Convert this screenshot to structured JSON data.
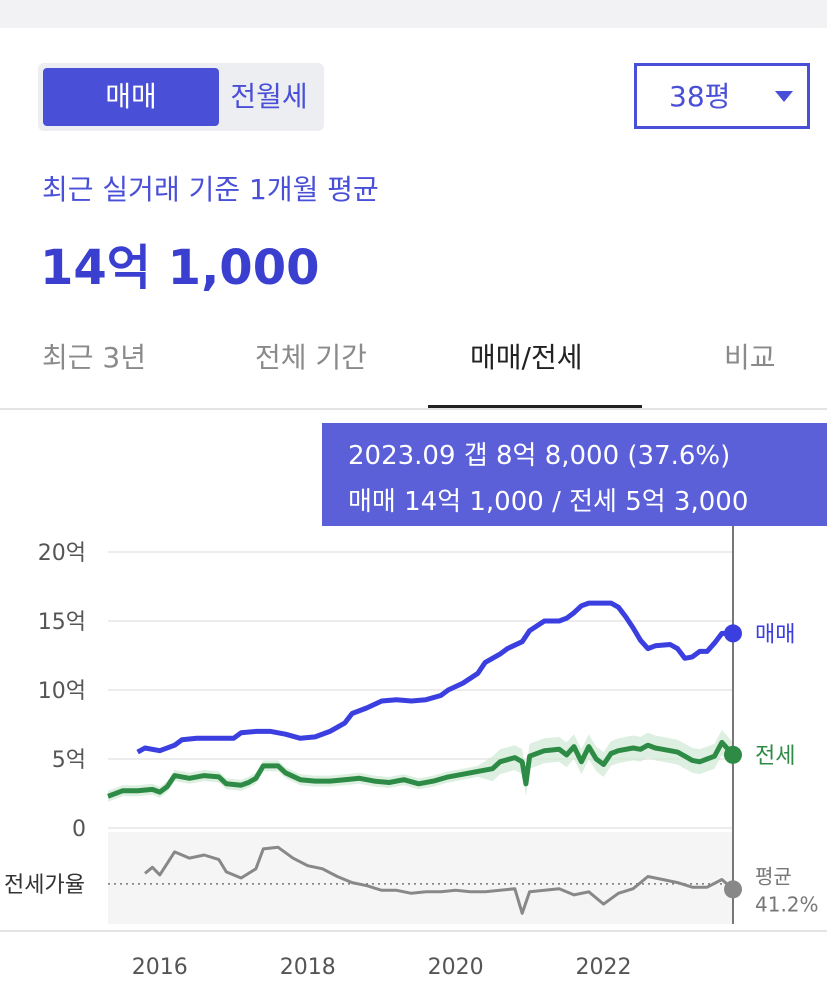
{
  "controls": {
    "segment": {
      "active": "매매",
      "other": "전월세"
    },
    "size_select": {
      "value": "38평"
    }
  },
  "summary": {
    "subtitle": "최근 실거래 기준 1개월 평균",
    "price": "14억 1,000"
  },
  "tabs": [
    {
      "label": "최근 3년",
      "active": false
    },
    {
      "label": "전체 기간",
      "active": false
    },
    {
      "label": "매매/전세",
      "active": true
    },
    {
      "label": "비교",
      "active": false
    }
  ],
  "tooltip": {
    "line1": "2023.09  갭 8억 8,000 (37.6%)",
    "line2": "매매 14억 1,000 / 전세 5억 3,000"
  },
  "colors": {
    "accent": "#4a4fd8",
    "sale": "#3b3fe0",
    "jeonse": "#2e8b45",
    "jeonse_band": "#cfe8d3",
    "ratio": "#888888"
  },
  "chart_data": {
    "type": "line",
    "yaxis": {
      "unit": "억",
      "ylim": [
        0,
        20
      ],
      "ticks": [
        {
          "value": 20,
          "label": "20억"
        },
        {
          "value": 15,
          "label": "15억"
        },
        {
          "value": 10,
          "label": "10억"
        },
        {
          "value": 5,
          "label": "5억"
        },
        {
          "value": 0,
          "label": "0"
        }
      ]
    },
    "xaxis": {
      "xlim": [
        2015.3,
        2023.75
      ],
      "ticks": [
        {
          "value": 2016,
          "label": "2016"
        },
        {
          "value": 2018,
          "label": "2018"
        },
        {
          "value": 2020,
          "label": "2020"
        },
        {
          "value": 2022,
          "label": "2022"
        }
      ]
    },
    "grid": true,
    "series": [
      {
        "name": "매매",
        "points": [
          [
            2015.7,
            5.5
          ],
          [
            2015.8,
            5.8
          ],
          [
            2016.0,
            5.6
          ],
          [
            2016.2,
            6.0
          ],
          [
            2016.3,
            6.4
          ],
          [
            2016.5,
            6.5
          ],
          [
            2016.8,
            6.5
          ],
          [
            2017.0,
            6.5
          ],
          [
            2017.1,
            6.9
          ],
          [
            2017.3,
            7.0
          ],
          [
            2017.5,
            7.0
          ],
          [
            2017.7,
            6.8
          ],
          [
            2017.9,
            6.5
          ],
          [
            2018.1,
            6.6
          ],
          [
            2018.3,
            7.0
          ],
          [
            2018.5,
            7.6
          ],
          [
            2018.6,
            8.3
          ],
          [
            2018.8,
            8.7
          ],
          [
            2019.0,
            9.2
          ],
          [
            2019.2,
            9.3
          ],
          [
            2019.4,
            9.2
          ],
          [
            2019.6,
            9.3
          ],
          [
            2019.8,
            9.6
          ],
          [
            2019.9,
            10.0
          ],
          [
            2020.1,
            10.5
          ],
          [
            2020.3,
            11.2
          ],
          [
            2020.4,
            12.0
          ],
          [
            2020.6,
            12.6
          ],
          [
            2020.7,
            13.0
          ],
          [
            2020.9,
            13.5
          ],
          [
            2021.0,
            14.3
          ],
          [
            2021.2,
            15.0
          ],
          [
            2021.4,
            15.0
          ],
          [
            2021.5,
            15.2
          ],
          [
            2021.6,
            15.6
          ],
          [
            2021.7,
            16.1
          ],
          [
            2021.8,
            16.3
          ],
          [
            2022.0,
            16.3
          ],
          [
            2022.1,
            16.3
          ],
          [
            2022.2,
            16.0
          ],
          [
            2022.3,
            15.3
          ],
          [
            2022.4,
            14.5
          ],
          [
            2022.5,
            13.6
          ],
          [
            2022.6,
            13.0
          ],
          [
            2022.7,
            13.2
          ],
          [
            2022.9,
            13.3
          ],
          [
            2023.0,
            13.0
          ],
          [
            2023.1,
            12.3
          ],
          [
            2023.2,
            12.4
          ],
          [
            2023.3,
            12.8
          ],
          [
            2023.4,
            12.8
          ],
          [
            2023.5,
            13.4
          ],
          [
            2023.6,
            14.1
          ],
          [
            2023.75,
            14.1
          ]
        ]
      },
      {
        "name": "전세",
        "points": [
          [
            2015.3,
            2.3
          ],
          [
            2015.5,
            2.7
          ],
          [
            2015.7,
            2.7
          ],
          [
            2015.9,
            2.8
          ],
          [
            2016.0,
            2.6
          ],
          [
            2016.1,
            3.0
          ],
          [
            2016.2,
            3.8
          ],
          [
            2016.4,
            3.6
          ],
          [
            2016.6,
            3.8
          ],
          [
            2016.8,
            3.7
          ],
          [
            2016.9,
            3.2
          ],
          [
            2017.1,
            3.1
          ],
          [
            2017.2,
            3.3
          ],
          [
            2017.3,
            3.6
          ],
          [
            2017.4,
            4.5
          ],
          [
            2017.6,
            4.5
          ],
          [
            2017.7,
            4.0
          ],
          [
            2017.9,
            3.5
          ],
          [
            2018.1,
            3.4
          ],
          [
            2018.3,
            3.4
          ],
          [
            2018.5,
            3.5
          ],
          [
            2018.7,
            3.6
          ],
          [
            2018.9,
            3.4
          ],
          [
            2019.1,
            3.3
          ],
          [
            2019.3,
            3.5
          ],
          [
            2019.5,
            3.2
          ],
          [
            2019.7,
            3.4
          ],
          [
            2019.9,
            3.7
          ],
          [
            2020.1,
            3.9
          ],
          [
            2020.3,
            4.1
          ],
          [
            2020.5,
            4.3
          ],
          [
            2020.6,
            4.8
          ],
          [
            2020.8,
            5.1
          ],
          [
            2020.9,
            4.8
          ],
          [
            2020.95,
            3.2
          ],
          [
            2021.0,
            5.2
          ],
          [
            2021.2,
            5.6
          ],
          [
            2021.4,
            5.7
          ],
          [
            2021.5,
            5.3
          ],
          [
            2021.6,
            5.9
          ],
          [
            2021.7,
            4.8
          ],
          [
            2021.8,
            5.9
          ],
          [
            2021.9,
            5.0
          ],
          [
            2022.0,
            4.6
          ],
          [
            2022.1,
            5.4
          ],
          [
            2022.2,
            5.6
          ],
          [
            2022.4,
            5.8
          ],
          [
            2022.5,
            5.7
          ],
          [
            2022.6,
            6.0
          ],
          [
            2022.7,
            5.8
          ],
          [
            2022.8,
            5.7
          ],
          [
            2023.0,
            5.5
          ],
          [
            2023.1,
            5.2
          ],
          [
            2023.2,
            4.9
          ],
          [
            2023.3,
            4.8
          ],
          [
            2023.4,
            5.0
          ],
          [
            2023.5,
            5.2
          ],
          [
            2023.6,
            6.2
          ],
          [
            2023.75,
            5.3
          ]
        ]
      },
      {
        "name": "전세가율",
        "points": [
          [
            2015.8,
            0.48
          ],
          [
            2015.9,
            0.52
          ],
          [
            2016.0,
            0.47
          ],
          [
            2016.2,
            0.62
          ],
          [
            2016.4,
            0.58
          ],
          [
            2016.6,
            0.6
          ],
          [
            2016.8,
            0.57
          ],
          [
            2016.9,
            0.49
          ],
          [
            2017.1,
            0.45
          ],
          [
            2017.3,
            0.51
          ],
          [
            2017.4,
            0.64
          ],
          [
            2017.6,
            0.65
          ],
          [
            2017.8,
            0.58
          ],
          [
            2018.0,
            0.53
          ],
          [
            2018.2,
            0.51
          ],
          [
            2018.4,
            0.46
          ],
          [
            2018.6,
            0.42
          ],
          [
            2018.8,
            0.4
          ],
          [
            2019.0,
            0.37
          ],
          [
            2019.2,
            0.37
          ],
          [
            2019.4,
            0.35
          ],
          [
            2019.6,
            0.36
          ],
          [
            2019.8,
            0.36
          ],
          [
            2020.0,
            0.37
          ],
          [
            2020.2,
            0.36
          ],
          [
            2020.4,
            0.36
          ],
          [
            2020.6,
            0.37
          ],
          [
            2020.8,
            0.38
          ],
          [
            2020.9,
            0.22
          ],
          [
            2021.0,
            0.36
          ],
          [
            2021.2,
            0.37
          ],
          [
            2021.4,
            0.38
          ],
          [
            2021.6,
            0.34
          ],
          [
            2021.8,
            0.36
          ],
          [
            2022.0,
            0.28
          ],
          [
            2022.2,
            0.35
          ],
          [
            2022.4,
            0.38
          ],
          [
            2022.6,
            0.46
          ],
          [
            2022.8,
            0.44
          ],
          [
            2023.0,
            0.42
          ],
          [
            2023.2,
            0.39
          ],
          [
            2023.4,
            0.39
          ],
          [
            2023.6,
            0.44
          ],
          [
            2023.75,
            0.376
          ]
        ]
      }
    ],
    "ratio_panel": {
      "label": "전세가율",
      "avg_label": "평균",
      "avg_value": "41.2%",
      "avg": 0.412
    },
    "end_labels": {
      "sale": "매매",
      "jeonse": "전세"
    },
    "cursor_x": 2023.75
  }
}
